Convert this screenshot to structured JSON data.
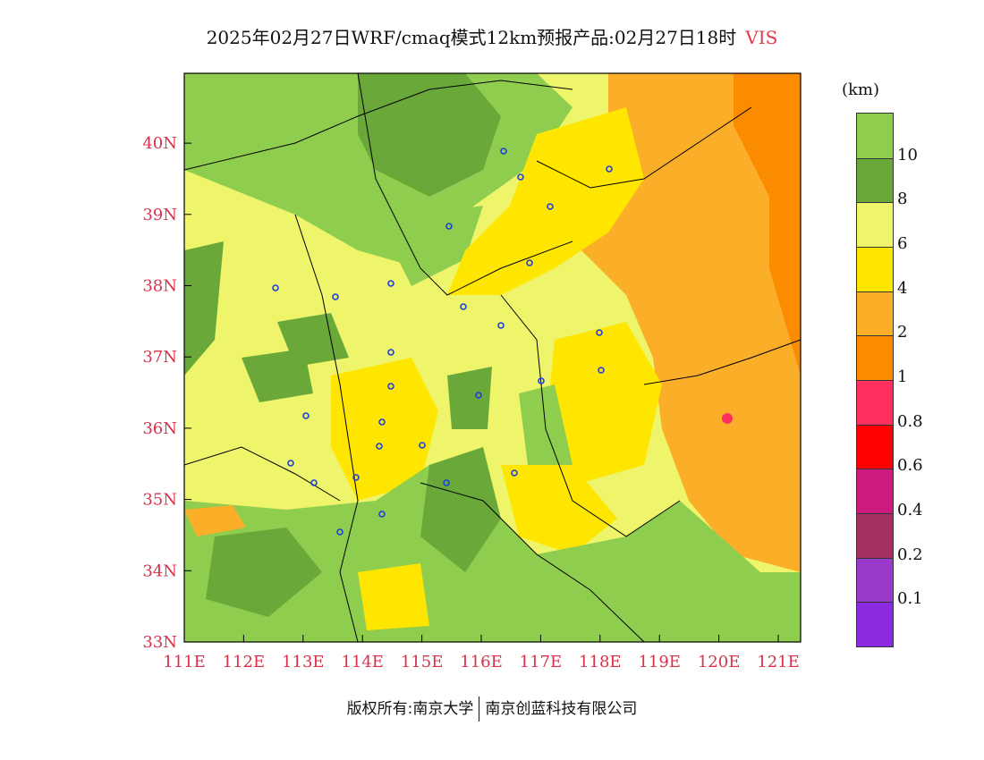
{
  "title": {
    "main": "2025年02月27日WRF/cmaq模式12km预报产品:02月27日18时",
    "variable": "VIS"
  },
  "colors": {
    "accent_label": "#e23a4c"
  },
  "map": {
    "lon_labels": [
      "111E",
      "112E",
      "113E",
      "114E",
      "115E",
      "116E",
      "117E",
      "118E",
      "119E",
      "120E",
      "121E"
    ],
    "lat_labels": [
      "33N",
      "34N",
      "35N",
      "36N",
      "37N",
      "38N",
      "39N",
      "40N"
    ]
  },
  "legend": {
    "unit": "(km)",
    "labels": [
      "10",
      "8",
      "6",
      "4",
      "2",
      "1",
      "0.8",
      "0.6",
      "0.4",
      "0.2",
      "0.1"
    ],
    "colors": [
      "#8fcd4f",
      "#6aa83a",
      "#eef56a",
      "#ffe600",
      "#fbae28",
      "#fb8c00",
      "#ff3060",
      "#ff0000",
      "#cc1a7f",
      "#a33060",
      "#9a38c9",
      "#8a2be2"
    ]
  },
  "footer": {
    "left": "版权所有:南京大学",
    "right": "南京创蓝科技有限公司"
  }
}
